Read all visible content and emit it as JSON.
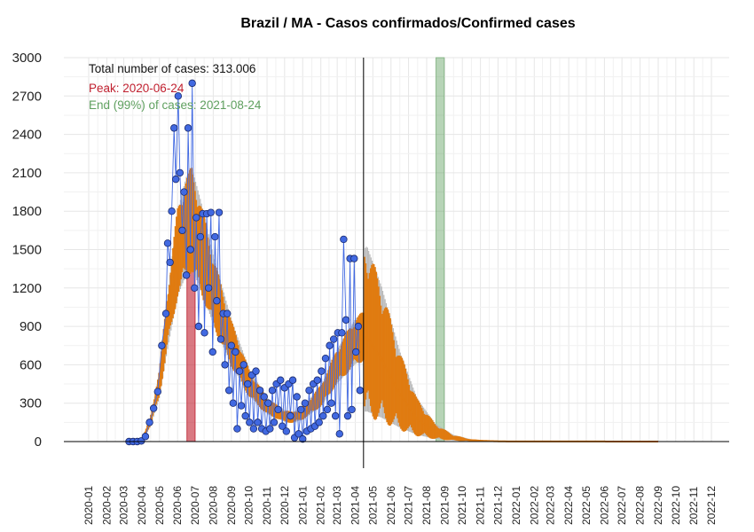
{
  "chart_data": {
    "type": "scatter",
    "title": "Brazil / MA - Casos confirmados/Confirmed cases",
    "xlabel": "",
    "ylabel": "",
    "ylim": [
      0,
      3000
    ],
    "yticks": [
      0,
      300,
      600,
      900,
      1200,
      1500,
      1800,
      2100,
      2400,
      2700,
      3000
    ],
    "xticks": [
      "2020-01",
      "2020-02",
      "2020-03",
      "2020-04",
      "2020-05",
      "2020-06",
      "2020-07",
      "2020-08",
      "2020-09",
      "2020-10",
      "2020-11",
      "2020-12",
      "2021-01",
      "2021-02",
      "2021-03",
      "2021-04",
      "2021-05",
      "2021-06",
      "2021-07",
      "2021-08",
      "2021-09",
      "2021-10",
      "2021-11",
      "2021-12",
      "2022-01",
      "2022-02",
      "2022-03",
      "2022-04",
      "2022-05",
      "2022-06",
      "2022-07",
      "2022-08",
      "2022-09",
      "2022-10",
      "2022-11",
      "2022-12"
    ],
    "grid": true,
    "annotations": {
      "total": "Total number of cases: 313.006",
      "peak": "Peak: 2020-06-24",
      "end": "End (99%) of cases: 2021-08-24"
    },
    "colors": {
      "points": "#4169E1",
      "model": "#E07B10",
      "peak_band": "#C0202F",
      "end_band": "#5FA05F",
      "grid": "#e6e6e6"
    },
    "peak_band": {
      "start": "2020-06-17",
      "end": "2020-07-01"
    },
    "end_band": {
      "start": "2021-08-17",
      "end": "2021-08-31"
    },
    "today_line": "2021-04-15",
    "observed_cases": [
      {
        "date": "2020-03-10",
        "value": 0
      },
      {
        "date": "2020-03-17",
        "value": 0
      },
      {
        "date": "2020-03-24",
        "value": 0
      },
      {
        "date": "2020-03-31",
        "value": 5
      },
      {
        "date": "2020-04-07",
        "value": 40
      },
      {
        "date": "2020-04-14",
        "value": 150
      },
      {
        "date": "2020-04-21",
        "value": 260
      },
      {
        "date": "2020-04-28",
        "value": 390
      },
      {
        "date": "2020-05-05",
        "value": 750
      },
      {
        "date": "2020-05-12",
        "value": 1000
      },
      {
        "date": "2020-05-15",
        "value": 1550
      },
      {
        "date": "2020-05-19",
        "value": 1400
      },
      {
        "date": "2020-05-22",
        "value": 1800
      },
      {
        "date": "2020-05-26",
        "value": 2450
      },
      {
        "date": "2020-05-29",
        "value": 2050
      },
      {
        "date": "2020-06-02",
        "value": 2700
      },
      {
        "date": "2020-06-05",
        "value": 2100
      },
      {
        "date": "2020-06-09",
        "value": 1650
      },
      {
        "date": "2020-06-12",
        "value": 1950
      },
      {
        "date": "2020-06-16",
        "value": 1300
      },
      {
        "date": "2020-06-19",
        "value": 2450
      },
      {
        "date": "2020-06-23",
        "value": 1500
      },
      {
        "date": "2020-06-26",
        "value": 2800
      },
      {
        "date": "2020-06-30",
        "value": 1200
      },
      {
        "date": "2020-07-03",
        "value": 1750
      },
      {
        "date": "2020-07-07",
        "value": 900
      },
      {
        "date": "2020-07-10",
        "value": 1600
      },
      {
        "date": "2020-07-14",
        "value": 1780
      },
      {
        "date": "2020-07-17",
        "value": 850
      },
      {
        "date": "2020-07-21",
        "value": 1780
      },
      {
        "date": "2020-07-24",
        "value": 1200
      },
      {
        "date": "2020-07-28",
        "value": 1790
      },
      {
        "date": "2020-07-31",
        "value": 700
      },
      {
        "date": "2020-08-04",
        "value": 1600
      },
      {
        "date": "2020-08-07",
        "value": 1100
      },
      {
        "date": "2020-08-11",
        "value": 1790
      },
      {
        "date": "2020-08-14",
        "value": 800
      },
      {
        "date": "2020-08-18",
        "value": 1000
      },
      {
        "date": "2020-08-21",
        "value": 600
      },
      {
        "date": "2020-08-25",
        "value": 1000
      },
      {
        "date": "2020-08-28",
        "value": 400
      },
      {
        "date": "2020-09-01",
        "value": 750
      },
      {
        "date": "2020-09-04",
        "value": 300
      },
      {
        "date": "2020-09-08",
        "value": 700
      },
      {
        "date": "2020-09-11",
        "value": 100
      },
      {
        "date": "2020-09-15",
        "value": 550
      },
      {
        "date": "2020-09-18",
        "value": 280
      },
      {
        "date": "2020-09-22",
        "value": 600
      },
      {
        "date": "2020-09-25",
        "value": 200
      },
      {
        "date": "2020-09-29",
        "value": 450
      },
      {
        "date": "2020-10-02",
        "value": 150
      },
      {
        "date": "2020-10-06",
        "value": 520
      },
      {
        "date": "2020-10-09",
        "value": 100
      },
      {
        "date": "2020-10-13",
        "value": 550
      },
      {
        "date": "2020-10-16",
        "value": 150
      },
      {
        "date": "2020-10-20",
        "value": 400
      },
      {
        "date": "2020-10-23",
        "value": 100
      },
      {
        "date": "2020-10-27",
        "value": 350
      },
      {
        "date": "2020-10-30",
        "value": 80
      },
      {
        "date": "2020-11-03",
        "value": 300
      },
      {
        "date": "2020-11-06",
        "value": 100
      },
      {
        "date": "2020-11-10",
        "value": 400
      },
      {
        "date": "2020-11-13",
        "value": 150
      },
      {
        "date": "2020-11-17",
        "value": 450
      },
      {
        "date": "2020-11-20",
        "value": 250
      },
      {
        "date": "2020-11-24",
        "value": 480
      },
      {
        "date": "2020-11-27",
        "value": 120
      },
      {
        "date": "2020-12-01",
        "value": 420
      },
      {
        "date": "2020-12-04",
        "value": 80
      },
      {
        "date": "2020-12-08",
        "value": 450
      },
      {
        "date": "2020-12-11",
        "value": 200
      },
      {
        "date": "2020-12-15",
        "value": 480
      },
      {
        "date": "2020-12-18",
        "value": 30
      },
      {
        "date": "2020-12-22",
        "value": 350
      },
      {
        "date": "2020-12-25",
        "value": 60
      },
      {
        "date": "2020-12-29",
        "value": 250
      },
      {
        "date": "2021-01-01",
        "value": 20
      },
      {
        "date": "2021-01-05",
        "value": 300
      },
      {
        "date": "2021-01-08",
        "value": 80
      },
      {
        "date": "2021-01-12",
        "value": 400
      },
      {
        "date": "2021-01-15",
        "value": 100
      },
      {
        "date": "2021-01-19",
        "value": 450
      },
      {
        "date": "2021-01-22",
        "value": 120
      },
      {
        "date": "2021-01-26",
        "value": 480
      },
      {
        "date": "2021-01-29",
        "value": 150
      },
      {
        "date": "2021-02-02",
        "value": 550
      },
      {
        "date": "2021-02-05",
        "value": 200
      },
      {
        "date": "2021-02-09",
        "value": 650
      },
      {
        "date": "2021-02-12",
        "value": 250
      },
      {
        "date": "2021-02-16",
        "value": 750
      },
      {
        "date": "2021-02-19",
        "value": 300
      },
      {
        "date": "2021-02-23",
        "value": 800
      },
      {
        "date": "2021-02-26",
        "value": 200
      },
      {
        "date": "2021-03-02",
        "value": 850
      },
      {
        "date": "2021-03-05",
        "value": 60
      },
      {
        "date": "2021-03-09",
        "value": 850
      },
      {
        "date": "2021-03-12",
        "value": 1580
      },
      {
        "date": "2021-03-16",
        "value": 950
      },
      {
        "date": "2021-03-19",
        "value": 200
      },
      {
        "date": "2021-03-23",
        "value": 1430
      },
      {
        "date": "2021-03-26",
        "value": 250
      },
      {
        "date": "2021-03-30",
        "value": 1430
      },
      {
        "date": "2021-04-02",
        "value": 700
      },
      {
        "date": "2021-04-06",
        "value": 900
      },
      {
        "date": "2021-04-09",
        "value": 400
      }
    ],
    "model_series": {
      "name": "",
      "points": [
        {
          "date": "2020-03-01",
          "value": 0
        },
        {
          "date": "2020-04-01",
          "value": 10
        },
        {
          "date": "2020-04-15",
          "value": 150
        },
        {
          "date": "2020-05-01",
          "value": 450
        },
        {
          "date": "2020-05-15",
          "value": 950
        },
        {
          "date": "2020-06-01",
          "value": 1450
        },
        {
          "date": "2020-06-15",
          "value": 1650
        },
        {
          "date": "2020-06-25",
          "value": 1700
        },
        {
          "date": "2020-07-10",
          "value": 1500
        },
        {
          "date": "2020-08-01",
          "value": 1150
        },
        {
          "date": "2020-09-01",
          "value": 750
        },
        {
          "date": "2020-10-01",
          "value": 450
        },
        {
          "date": "2020-11-01",
          "value": 270
        },
        {
          "date": "2020-12-01",
          "value": 195
        },
        {
          "date": "2020-12-15",
          "value": 185
        },
        {
          "date": "2021-01-01",
          "value": 220
        },
        {
          "date": "2021-02-01",
          "value": 350
        },
        {
          "date": "2021-03-01",
          "value": 580
        },
        {
          "date": "2021-04-01",
          "value": 770
        },
        {
          "date": "2021-04-20",
          "value": 820
        },
        {
          "date": "2021-05-15",
          "value": 650
        },
        {
          "date": "2021-06-15",
          "value": 380
        },
        {
          "date": "2021-07-15",
          "value": 180
        },
        {
          "date": "2021-08-15",
          "value": 75
        },
        {
          "date": "2021-09-15",
          "value": 28
        },
        {
          "date": "2021-10-15",
          "value": 10
        },
        {
          "date": "2021-11-15",
          "value": 4
        },
        {
          "date": "2021-12-15",
          "value": 1
        },
        {
          "date": "2022-09-01",
          "value": 0
        }
      ]
    }
  }
}
